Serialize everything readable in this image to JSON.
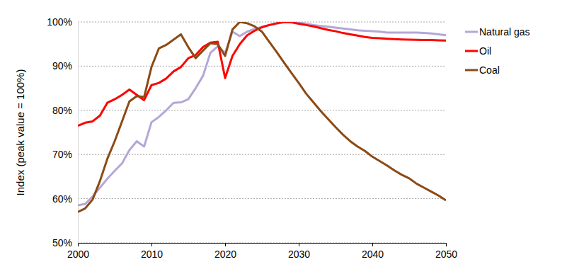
{
  "chart_data": {
    "type": "line",
    "y_label": "Index (peak value = 100%)",
    "x": [
      2000,
      2001,
      2002,
      2003,
      2004,
      2005,
      2006,
      2007,
      2008,
      2009,
      2010,
      2011,
      2012,
      2013,
      2014,
      2015,
      2016,
      2017,
      2018,
      2019,
      2020,
      2021,
      2022,
      2023,
      2024,
      2025,
      2026,
      2027,
      2028,
      2029,
      2030,
      2031,
      2032,
      2033,
      2034,
      2035,
      2036,
      2037,
      2038,
      2039,
      2040,
      2041,
      2042,
      2043,
      2044,
      2045,
      2046,
      2047,
      2048,
      2049,
      2050
    ],
    "series": [
      {
        "name": "Natural gas",
        "color": "#b4a7d6",
        "values": [
          58.5,
          58.8,
          60.5,
          62.5,
          64.5,
          66.3,
          68,
          71,
          73,
          71.8,
          77.3,
          78.5,
          80,
          81.7,
          81.8,
          82.5,
          85,
          87.8,
          93,
          94.5,
          93,
          97.8,
          96.8,
          97.8,
          98.4,
          98.9,
          99.3,
          99.6,
          99.9,
          100,
          99.9,
          99.6,
          99.3,
          99.1,
          98.9,
          98.7,
          98.5,
          98.3,
          98.1,
          98,
          97.9,
          97.8,
          97.6,
          97.6,
          97.6,
          97.6,
          97.6,
          97.5,
          97.4,
          97.2,
          97
        ]
      },
      {
        "name": "Oil",
        "color": "#ff0000",
        "values": [
          76.5,
          77.2,
          77.5,
          78.8,
          81.7,
          82.5,
          83.5,
          84.7,
          83.5,
          82.3,
          85.7,
          86.2,
          87.2,
          88.8,
          89.8,
          91.8,
          92.5,
          94.3,
          95.3,
          95.5,
          87.3,
          92.3,
          95,
          97,
          98,
          98.8,
          99.3,
          99.7,
          100,
          99.9,
          99.6,
          99.3,
          99,
          98.6,
          98.2,
          97.9,
          97.5,
          97.2,
          96.9,
          96.6,
          96.4,
          96.3,
          96.2,
          96.1,
          96.05,
          96,
          95.95,
          95.9,
          95.9,
          95.85,
          95.8
        ]
      },
      {
        "name": "Coal",
        "color": "#8c4a14",
        "values": [
          57,
          57.8,
          59.8,
          64,
          69,
          73,
          77.5,
          82,
          83.2,
          83,
          89.8,
          94,
          94.8,
          96,
          97.2,
          94.3,
          91.8,
          93.5,
          95.2,
          95,
          92.3,
          98.3,
          100,
          99.7,
          99,
          97.8,
          95.5,
          93.2,
          90.8,
          88.5,
          86.2,
          83.8,
          81.8,
          79.8,
          78,
          76.2,
          74.5,
          73,
          71.8,
          70.8,
          69.5,
          68.5,
          67.5,
          66.4,
          65.4,
          64.6,
          63.4,
          62.5,
          61.6,
          60.7,
          59.6
        ]
      }
    ],
    "xlim": [
      2000,
      2050
    ],
    "xticks": [
      2000,
      2010,
      2020,
      2030,
      2040,
      2050
    ],
    "ylim": [
      50,
      100
    ],
    "yticks": [
      {
        "value": 50,
        "label": "50%"
      },
      {
        "value": 60,
        "label": "60%"
      },
      {
        "value": 70,
        "label": "70%"
      },
      {
        "value": 80,
        "label": "80%"
      },
      {
        "value": 90,
        "label": "90%"
      },
      {
        "value": 100,
        "label": "100%"
      }
    ],
    "grid": true,
    "legend": "right"
  }
}
